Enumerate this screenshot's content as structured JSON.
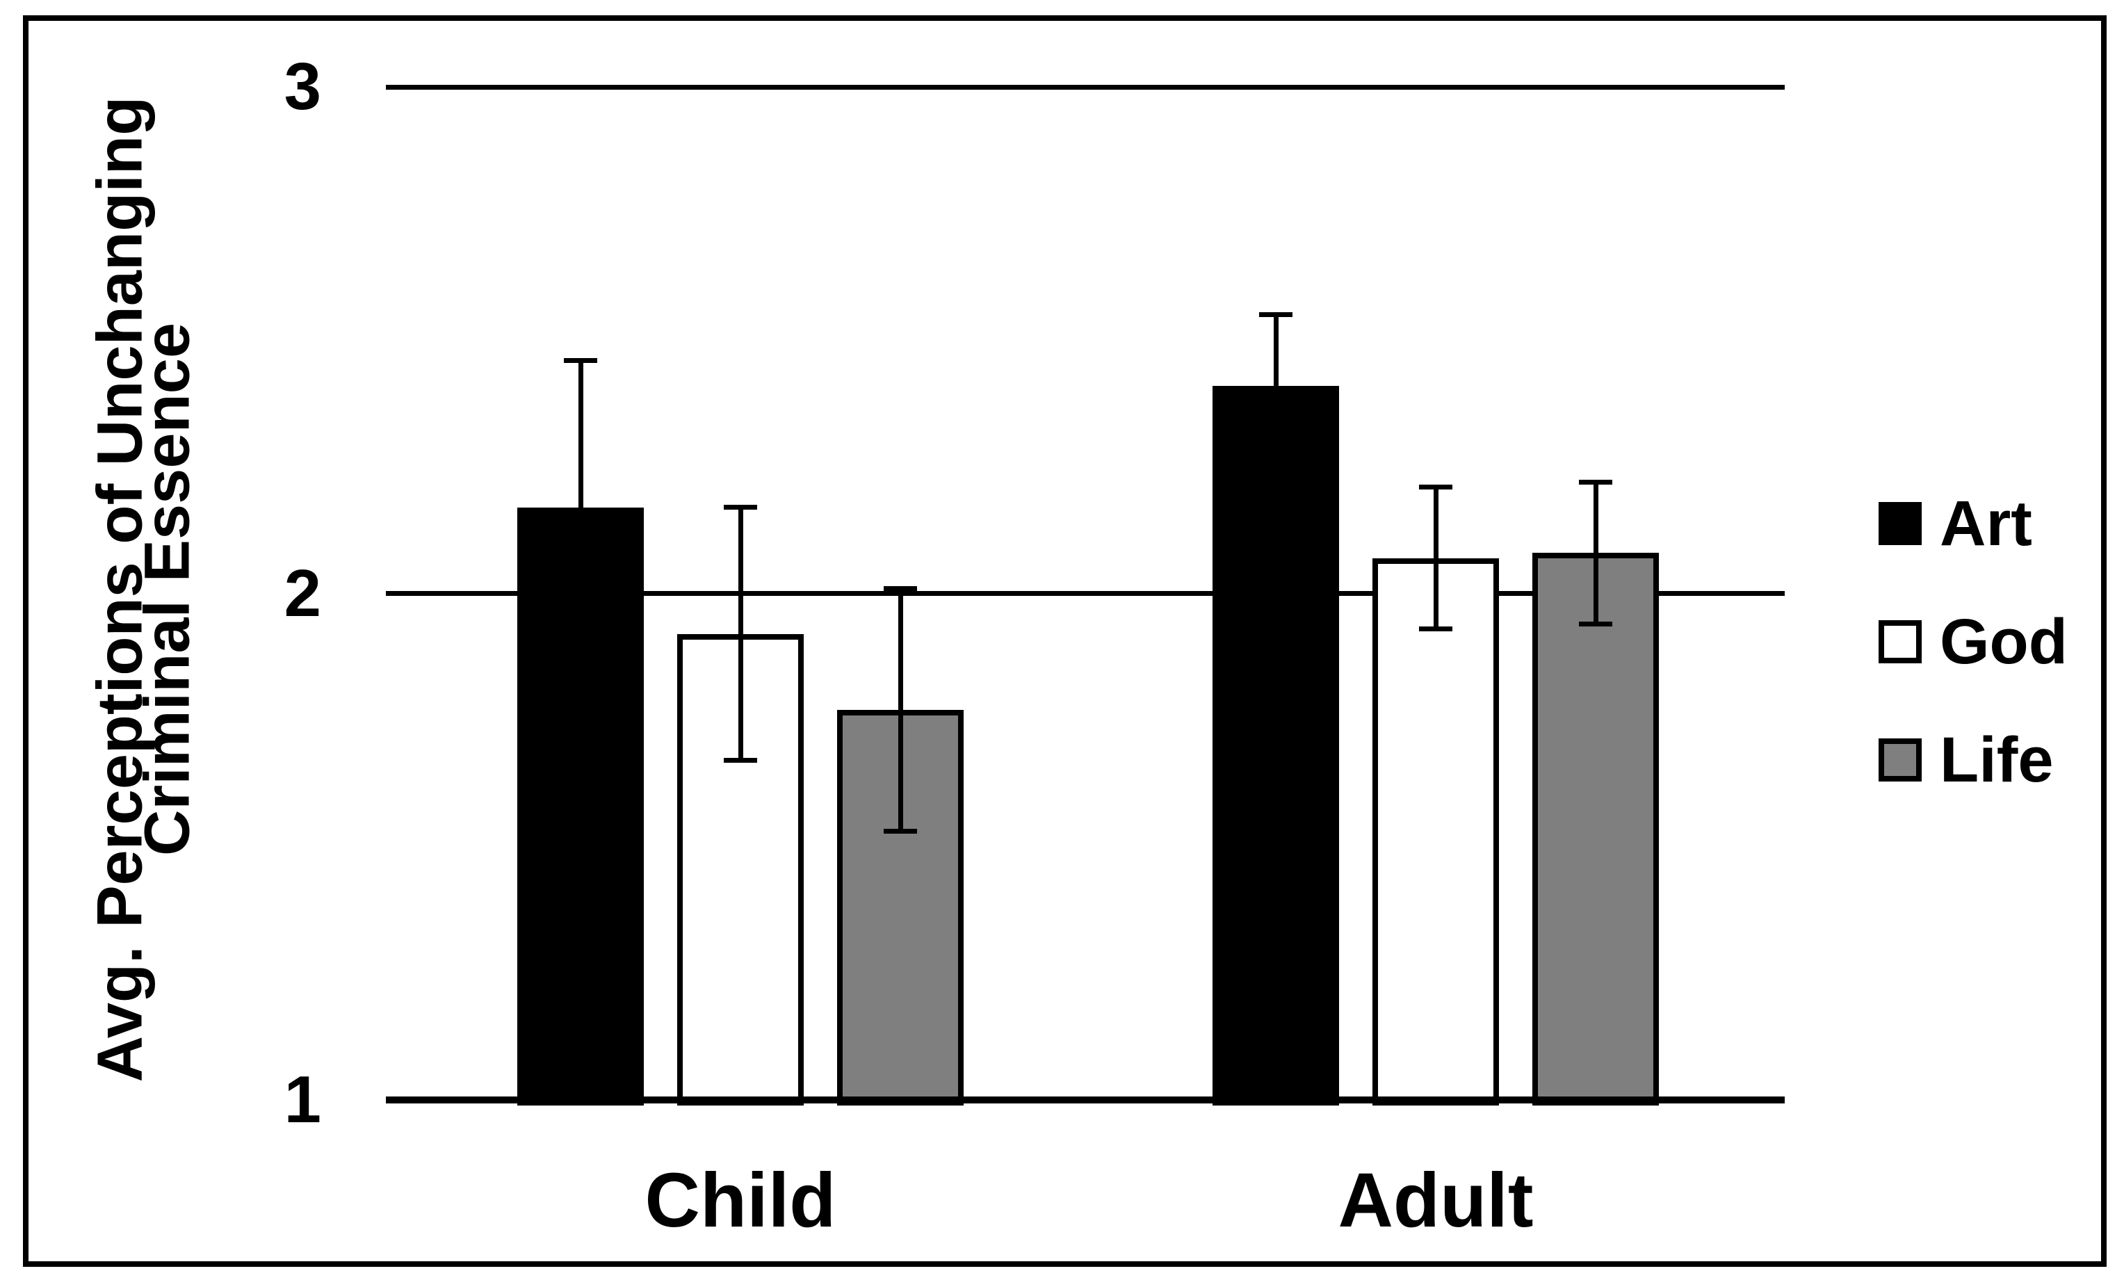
{
  "figure": {
    "background": "#ffffff",
    "border_color": "#000000"
  },
  "chart_data": {
    "type": "bar",
    "title": "",
    "xlabel": "",
    "ylabel_line1": "Avg. Perceptions of Unchanging",
    "ylabel_line2": "Criminal Essence",
    "categories": [
      "Child",
      "Adult"
    ],
    "series": [
      {
        "name": "Art",
        "color": "#000000",
        "values": [
          2.17,
          2.41
        ],
        "errors": [
          0.29,
          0.14
        ]
      },
      {
        "name": "God",
        "color": "#ffffff",
        "values": [
          1.92,
          2.07
        ],
        "errors": [
          0.25,
          0.14
        ]
      },
      {
        "name": "Life",
        "color": "#7f7f7f",
        "values": [
          1.77,
          2.08
        ],
        "errors": [
          0.24,
          0.14
        ]
      }
    ],
    "ylim": [
      1,
      3
    ],
    "yticks": [
      "1",
      "2",
      "3"
    ],
    "grid": "horizontal-at-2-and-3",
    "error_bars": "symmetric, black caps",
    "legend_position": "right-outside"
  }
}
